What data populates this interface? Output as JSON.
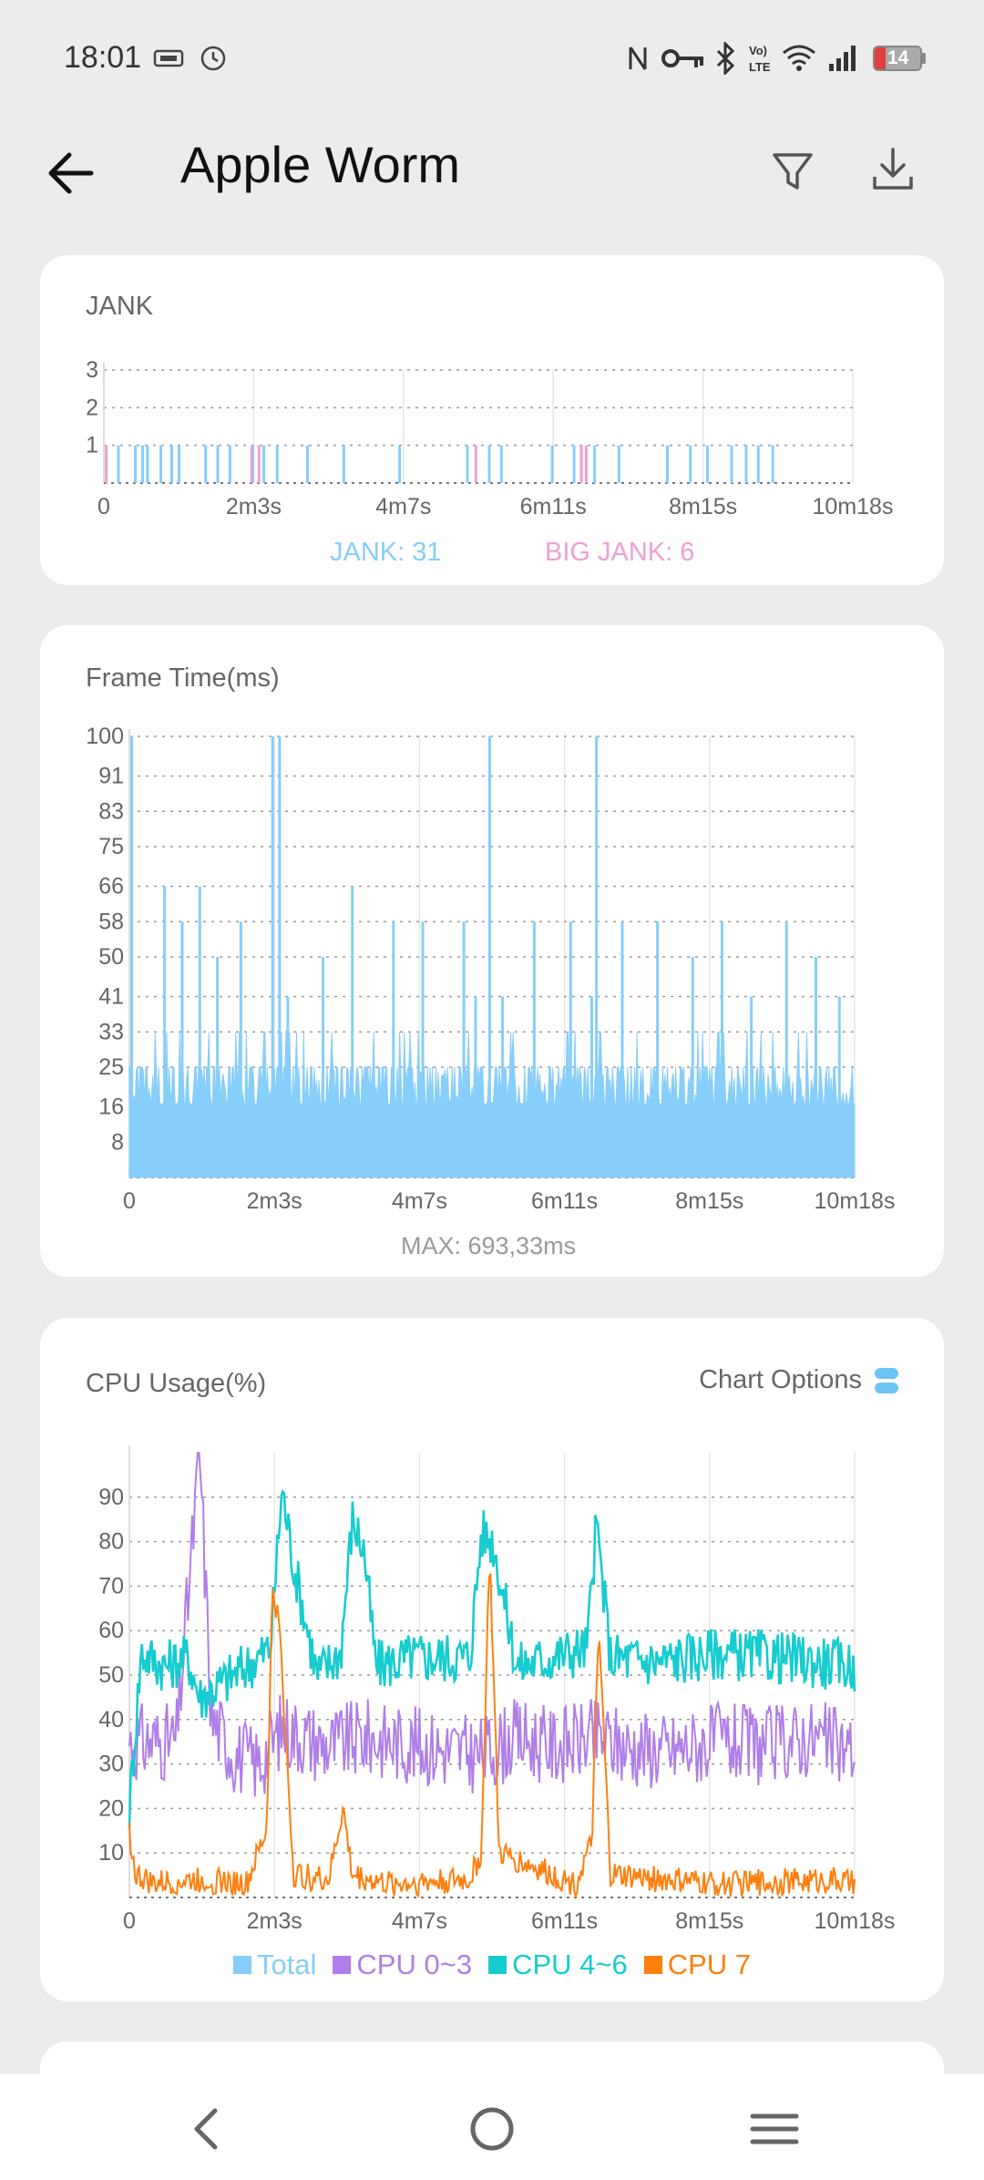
{
  "status_bar": {
    "time": "18:01",
    "battery": "14",
    "left_icons": [
      "sim-card-icon",
      "alarm-icon"
    ],
    "right_icons": [
      "nfc-icon",
      "vpn-key-icon",
      "bluetooth-icon",
      "volte-icon",
      "wifi-icon",
      "signal-icon",
      "battery-icon"
    ]
  },
  "app_bar": {
    "title": "Apple Worm",
    "icons": [
      "back-arrow-icon",
      "filter-icon",
      "download-icon"
    ]
  },
  "jank_card": {
    "title": "JANK",
    "legend_jank": "JANK: 31",
    "legend_big_jank": "BIG JANK: 6"
  },
  "frame_card": {
    "title": "Frame Time(ms)",
    "max_label": "MAX: 693,33ms"
  },
  "cpu_card": {
    "title": "CPU Usage(%)",
    "options_label": "Chart Options",
    "legend": [
      "Total",
      "CPU 0~3",
      "CPU 4~6",
      "CPU 7"
    ]
  },
  "colors": {
    "total": "#87cefa",
    "big_jank": "#f0a0d2",
    "cpu_0_3": "#b07ee8",
    "cpu_4_6": "#17cccf",
    "cpu_7": "#ff7f0e"
  },
  "chart_data": [
    {
      "type": "bar",
      "title": "JANK",
      "x_ticks": [
        "0",
        "2m3s",
        "4m7s",
        "6m11s",
        "8m15s",
        "10m18s"
      ],
      "y_ticks": [
        "1",
        "2",
        "3"
      ],
      "xlim_seconds": [
        0,
        618
      ],
      "ylim": [
        0,
        3
      ],
      "series": [
        {
          "name": "JANK: 31",
          "x_seconds": [
            2,
            12,
            32,
            47,
            62,
            84,
            94,
            104,
            123,
            143,
            168,
            198,
            300,
            318,
            328,
            370,
            388,
            405,
            425,
            465,
            484,
            498,
            518,
            540,
            552,
            36,
            56,
            132,
            244,
            530,
            26
          ],
          "values": [
            1,
            1,
            1,
            1,
            1,
            1,
            1,
            1,
            1,
            1,
            1,
            1,
            1,
            1,
            1,
            1,
            1,
            1,
            1,
            1,
            1,
            1,
            1,
            1,
            1,
            1,
            1,
            1,
            1,
            1,
            1
          ]
        },
        {
          "name": "BIG JANK: 6",
          "x_seconds": [
            2,
            122,
            128,
            307,
            394,
            398
          ],
          "values": [
            1,
            1,
            1,
            1,
            1,
            1
          ]
        }
      ]
    },
    {
      "type": "area",
      "title": "Frame Time(ms)",
      "x_ticks": [
        "0",
        "2m3s",
        "4m7s",
        "6m11s",
        "8m15s",
        "10m18s"
      ],
      "y_ticks": [
        "8",
        "16",
        "25",
        "33",
        "41",
        "50",
        "58",
        "66",
        "75",
        "83",
        "91",
        "100"
      ],
      "xlim_seconds": [
        0,
        618
      ],
      "ylim": [
        0,
        100
      ],
      "max_label": "MAX: 693,33ms",
      "series": [
        {
          "name": "Total",
          "baseline_ms": 16.7,
          "typical_ms": 25,
          "spikes": [
            {
              "x": 2,
              "y": 100
            },
            {
              "x": 30,
              "y": 66
            },
            {
              "x": 45,
              "y": 58
            },
            {
              "x": 60,
              "y": 66
            },
            {
              "x": 75,
              "y": 50
            },
            {
              "x": 95,
              "y": 58
            },
            {
              "x": 122,
              "y": 100
            },
            {
              "x": 128,
              "y": 100
            },
            {
              "x": 135,
              "y": 41
            },
            {
              "x": 165,
              "y": 50
            },
            {
              "x": 190,
              "y": 66
            },
            {
              "x": 225,
              "y": 58
            },
            {
              "x": 250,
              "y": 58
            },
            {
              "x": 285,
              "y": 58
            },
            {
              "x": 295,
              "y": 41
            },
            {
              "x": 307,
              "y": 100
            },
            {
              "x": 318,
              "y": 41
            },
            {
              "x": 345,
              "y": 58
            },
            {
              "x": 376,
              "y": 58
            },
            {
              "x": 394,
              "y": 41
            },
            {
              "x": 398,
              "y": 100
            },
            {
              "x": 420,
              "y": 58
            },
            {
              "x": 450,
              "y": 58
            },
            {
              "x": 480,
              "y": 50
            },
            {
              "x": 505,
              "y": 58
            },
            {
              "x": 530,
              "y": 41
            },
            {
              "x": 560,
              "y": 58
            },
            {
              "x": 585,
              "y": 50
            },
            {
              "x": 605,
              "y": 41
            }
          ]
        }
      ]
    },
    {
      "type": "line",
      "title": "CPU Usage(%)",
      "x_ticks": [
        "0",
        "2m3s",
        "4m7s",
        "6m11s",
        "8m15s",
        "10m18s"
      ],
      "y_ticks": [
        "10",
        "20",
        "30",
        "40",
        "50",
        "60",
        "70",
        "80",
        "90"
      ],
      "xlim_seconds": [
        0,
        618
      ],
      "ylim": [
        0,
        100
      ],
      "legend": "bottom",
      "series": [
        {
          "name": "CPU 0~3",
          "x": [
            0,
            40,
            60,
            70,
            90,
            110,
            130,
            170,
            200,
            250,
            300,
            330,
            360,
            400,
            420,
            460,
            500,
            540,
            580,
            618
          ],
          "values": [
            35,
            35,
            100,
            40,
            32,
            30,
            38,
            34,
            36,
            34,
            32,
            36,
            34,
            36,
            34,
            33,
            35,
            34,
            36,
            33
          ]
        },
        {
          "name": "CPU 4~6",
          "x": [
            0,
            10,
            30,
            50,
            60,
            100,
            120,
            130,
            140,
            160,
            180,
            190,
            200,
            210,
            240,
            290,
            300,
            310,
            330,
            390,
            398,
            410,
            450,
            500,
            550,
            618
          ],
          "values": [
            20,
            55,
            52,
            54,
            45,
            52,
            56,
            92,
            75,
            50,
            55,
            85,
            78,
            52,
            54,
            54,
            82,
            80,
            52,
            56,
            84,
            54,
            53,
            55,
            54,
            52
          ]
        },
        {
          "name": "CPU 7",
          "x": [
            0,
            5,
            20,
            60,
            100,
            117,
            122,
            128,
            140,
            170,
            182,
            190,
            220,
            290,
            300,
            307,
            315,
            380,
            394,
            400,
            410,
            500,
            600,
            618
          ],
          "values": [
            15,
            5,
            3,
            4,
            3,
            15,
            70,
            60,
            5,
            4,
            20,
            5,
            3,
            4,
            10,
            78,
            10,
            3,
            12,
            60,
            5,
            3,
            4,
            3
          ]
        }
      ]
    }
  ]
}
